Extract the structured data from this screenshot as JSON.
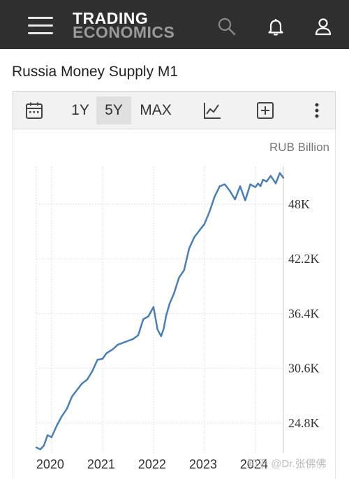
{
  "header": {
    "logo_line1": "TRADING",
    "logo_line2": "ECONOMICS",
    "icons": [
      "menu-icon",
      "search-icon",
      "bell-icon",
      "user-icon"
    ]
  },
  "page": {
    "title": "Russia Money Supply M1"
  },
  "toolbar": {
    "ranges": [
      "1Y",
      "5Y",
      "MAX"
    ],
    "active_range": "5Y",
    "icons": [
      "calendar-icon",
      "line-chart-icon",
      "add-icon",
      "more-icon"
    ]
  },
  "chart": {
    "unit": "RUB Billion"
  },
  "watermark": "知乎 @Dr.张佛佛",
  "colors": {
    "header_bg": "#2f2f2f",
    "line": "#4a7fb5",
    "grid": "#e2e2e2"
  },
  "chart_data": {
    "type": "line",
    "x_tick_labels": [
      "2020",
      "2021",
      "2022",
      "2023",
      "2024"
    ],
    "y_tick_labels": [
      "24.8K",
      "30.6K",
      "36.4K",
      "42.2K",
      "48K"
    ],
    "y_ticks": [
      24800,
      30600,
      36400,
      42200,
      48000
    ],
    "ylim": [
      21600,
      52000
    ],
    "xlim": [
      2019.7,
      2024.55
    ],
    "ylabel": "RUB Billion",
    "grid": true,
    "series": [
      {
        "x": [
          2019.7,
          2019.78,
          2019.85,
          2019.92,
          2020.0,
          2020.1,
          2020.2,
          2020.3,
          2020.4,
          2020.5,
          2020.6,
          2020.7,
          2020.8,
          2020.9,
          2021.0,
          2021.08,
          2021.2,
          2021.3,
          2021.4,
          2021.5,
          2021.6,
          2021.7,
          2021.8,
          2021.9,
          2022.0,
          2022.08,
          2022.15,
          2022.2,
          2022.25,
          2022.32,
          2022.4,
          2022.5,
          2022.6,
          2022.7,
          2022.8,
          2022.9,
          2023.0,
          2023.1,
          2023.2,
          2023.3,
          2023.4,
          2023.5,
          2023.6,
          2023.7,
          2023.8,
          2023.9,
          2024.0,
          2024.05,
          2024.1,
          2024.15,
          2024.22,
          2024.3,
          2024.4,
          2024.48,
          2024.55
        ],
        "values": [
          22200,
          22000,
          22400,
          23500,
          23300,
          24500,
          25500,
          26300,
          27600,
          28300,
          29000,
          29400,
          30300,
          31500,
          31600,
          32200,
          32600,
          33100,
          33300,
          33500,
          33700,
          34100,
          35800,
          36100,
          37100,
          34700,
          34000,
          34800,
          36200,
          37500,
          38500,
          40200,
          41000,
          43300,
          44500,
          45200,
          45900,
          47200,
          48800,
          49900,
          50100,
          49400,
          48500,
          49900,
          48400,
          50100,
          49800,
          50200,
          49900,
          50600,
          50400,
          51000,
          50200,
          51300,
          50800
        ]
      }
    ]
  }
}
